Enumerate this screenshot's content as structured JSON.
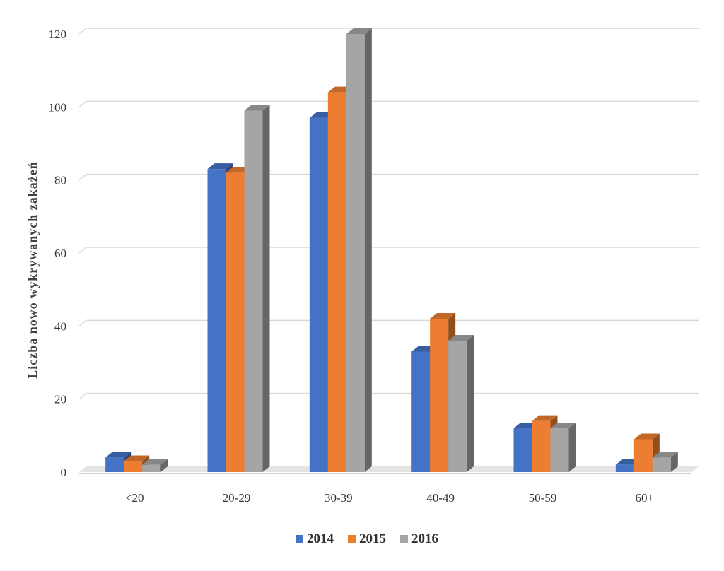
{
  "chart_data": {
    "type": "bar",
    "title": "",
    "xlabel": "",
    "ylabel": "Liczba nowo wykrywanych zakażeń",
    "categories": [
      "<20",
      "20-29",
      "30-39",
      "40-49",
      "50-59",
      "60+"
    ],
    "series": [
      {
        "name": "2014",
        "color": "#4472c4",
        "values": [
          4,
          83,
          97,
          33,
          12,
          2
        ]
      },
      {
        "name": "2015",
        "color": "#ed7d31",
        "values": [
          3,
          82,
          104,
          42,
          14,
          9
        ]
      },
      {
        "name": "2016",
        "color": "#a5a5a5",
        "values": [
          2,
          99,
          120,
          36,
          12,
          4
        ]
      }
    ],
    "ylim": [
      0,
      120
    ],
    "yticks": [
      "0",
      "20",
      "40",
      "60",
      "80",
      "100",
      "120"
    ],
    "grid": true,
    "legend_position": "bottom",
    "style": "3d-column"
  }
}
